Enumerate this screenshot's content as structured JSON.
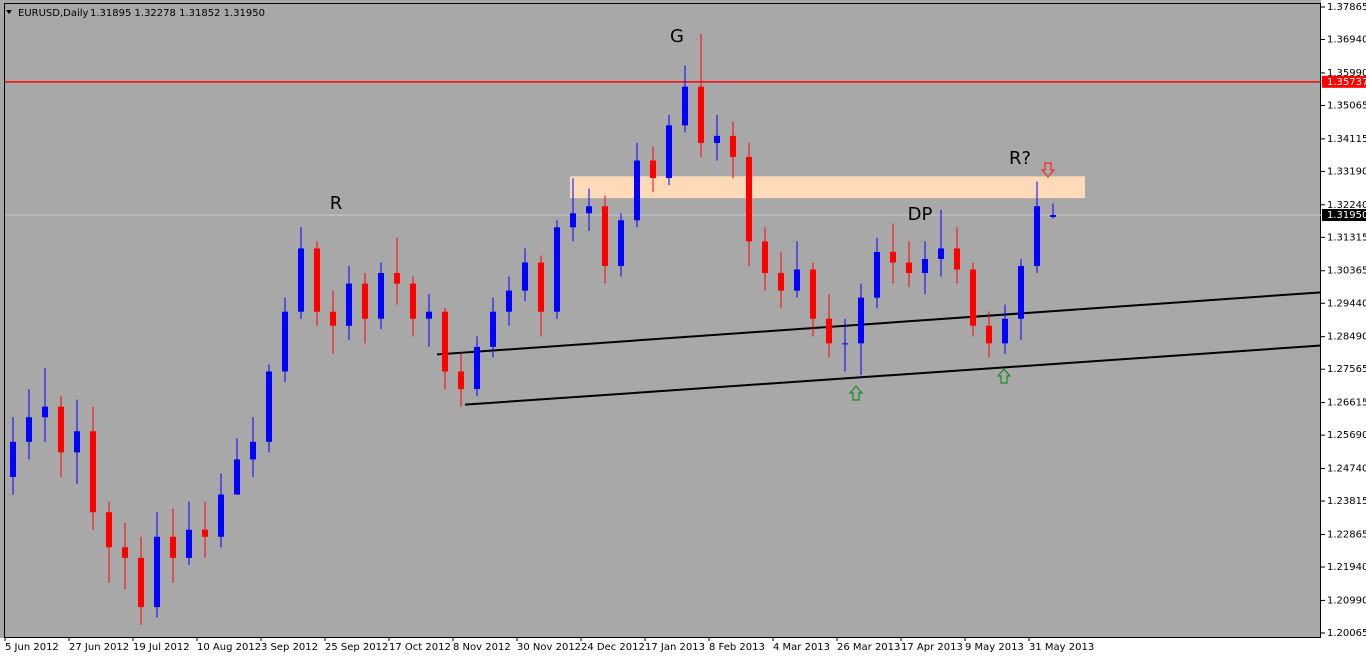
{
  "chart_data": {
    "type": "candlestick",
    "title": "EURUSD,Daily",
    "header_prices": "1.31895 1.32278 1.31852 1.31950",
    "categories": [
      "5 Jun 2012",
      null,
      null,
      null,
      "27 Jun 2012",
      null,
      null,
      null,
      "19 Jul 2012",
      null,
      null,
      null,
      "10 Aug 2012",
      null,
      null,
      null,
      "3 Sep 2012",
      null,
      null,
      null,
      "25 Sep 2012",
      null,
      null,
      null,
      "17 Oct 2012",
      null,
      null,
      null,
      "8 Nov 2012",
      null,
      null,
      null,
      "30 Nov 2012",
      null,
      null,
      null,
      "24 Dec 2012",
      null,
      null,
      null,
      "17 Jan 2013",
      null,
      null,
      null,
      "8 Feb 2013",
      null,
      null,
      null,
      "4 Mar 2013",
      null,
      null,
      null,
      "26 Mar 2013",
      null,
      null,
      null,
      "17 Apr 2013",
      null,
      null,
      null,
      "9 May 2013",
      null,
      null,
      null,
      "31 May 2013",
      null
    ],
    "open": [
      1.245,
      1.255,
      1.262,
      1.265,
      1.252,
      1.258,
      1.235,
      1.225,
      1.222,
      1.208,
      1.228,
      1.222,
      1.23,
      1.228,
      1.24,
      1.25,
      1.255,
      1.275,
      1.292,
      1.31,
      1.292,
      1.288,
      1.3,
      1.29,
      1.303,
      1.3,
      1.29,
      1.292,
      1.275,
      1.27,
      1.282,
      1.292,
      1.298,
      1.306,
      1.292,
      1.316,
      1.32,
      1.322,
      1.305,
      1.318,
      1.335,
      1.33,
      1.345,
      1.356,
      1.34,
      1.342,
      1.336,
      1.312,
      1.303,
      1.298,
      1.304,
      1.29,
      1.283,
      1.283,
      1.296,
      1.309,
      1.306,
      1.303,
      1.307,
      1.31,
      1.304,
      1.288,
      1.283,
      1.29,
      1.305,
      1.31895
    ],
    "high": [
      1.262,
      1.27,
      1.276,
      1.268,
      1.267,
      1.265,
      1.238,
      1.232,
      1.228,
      1.235,
      1.236,
      1.238,
      1.238,
      1.246,
      1.256,
      1.262,
      1.277,
      1.296,
      1.316,
      1.312,
      1.298,
      1.305,
      1.303,
      1.306,
      1.313,
      1.302,
      1.297,
      1.293,
      1.28,
      1.285,
      1.296,
      1.302,
      1.31,
      1.308,
      1.318,
      1.33,
      1.327,
      1.325,
      1.32,
      1.34,
      1.339,
      1.348,
      1.362,
      1.371,
      1.348,
      1.346,
      1.34,
      1.316,
      1.309,
      1.312,
      1.306,
      1.297,
      1.29,
      1.3,
      1.313,
      1.317,
      1.312,
      1.312,
      1.321,
      1.316,
      1.306,
      1.292,
      1.294,
      1.307,
      1.329,
      1.32278
    ],
    "low": [
      1.24,
      1.25,
      1.255,
      1.245,
      1.243,
      1.23,
      1.215,
      1.213,
      1.203,
      1.205,
      1.215,
      1.22,
      1.222,
      1.225,
      1.24,
      1.245,
      1.252,
      1.272,
      1.29,
      1.288,
      1.28,
      1.284,
      1.283,
      1.287,
      1.294,
      1.285,
      1.282,
      1.27,
      1.265,
      1.268,
      1.279,
      1.288,
      1.295,
      1.285,
      1.29,
      1.312,
      1.315,
      1.3,
      1.302,
      1.316,
      1.326,
      1.328,
      1.343,
      1.336,
      1.335,
      1.33,
      1.305,
      1.298,
      1.293,
      1.296,
      1.285,
      1.279,
      1.275,
      1.274,
      1.293,
      1.3,
      1.299,
      1.297,
      1.302,
      1.3,
      1.285,
      1.279,
      1.28,
      1.284,
      1.303,
      1.31852
    ],
    "close": [
      1.255,
      1.262,
      1.265,
      1.252,
      1.258,
      1.235,
      1.225,
      1.222,
      1.208,
      1.228,
      1.222,
      1.23,
      1.228,
      1.24,
      1.25,
      1.255,
      1.275,
      1.292,
      1.31,
      1.292,
      1.288,
      1.3,
      1.29,
      1.303,
      1.3,
      1.29,
      1.292,
      1.275,
      1.27,
      1.282,
      1.292,
      1.298,
      1.306,
      1.292,
      1.316,
      1.32,
      1.322,
      1.305,
      1.318,
      1.335,
      1.33,
      1.345,
      1.356,
      1.34,
      1.342,
      1.336,
      1.312,
      1.303,
      1.298,
      1.304,
      1.29,
      1.283,
      1.283,
      1.296,
      1.309,
      1.306,
      1.303,
      1.307,
      1.31,
      1.304,
      1.288,
      1.283,
      1.29,
      1.305,
      1.322,
      1.3195
    ],
    "up_color": "#0000ff",
    "down_color": "#ff0000",
    "ylim": [
      1.1995,
      1.3795
    ],
    "yticks": [
      1.37865,
      {
        "value": 1.3694,
        "label": "1.36940"
      },
      {
        "value": 1.3599,
        "label": "1.35990"
      },
      1.35065,
      1.34115,
      {
        "value": 1.3319,
        "label": "1.33190"
      },
      {
        "value": 1.3224,
        "label": "1.32240"
      },
      1.31315,
      1.30365,
      {
        "value": 1.2944,
        "label": "1.29440"
      },
      {
        "value": 1.2849,
        "label": "1.28490"
      },
      1.27565,
      1.26615,
      {
        "value": 1.2569,
        "label": "1.25690"
      },
      {
        "value": 1.2474,
        "label": "1.24740"
      },
      1.23815,
      1.22865,
      {
        "value": 1.2194,
        "label": "1.21940"
      },
      {
        "value": 1.2099,
        "label": "1.20990"
      },
      1.20065
    ],
    "resistance": {
      "value": 1.35737,
      "label": "1.35737",
      "color": "#ff0000"
    },
    "current_price": {
      "value": 1.3195,
      "label": "1.31950"
    },
    "zone": [
      1.3243,
      1.3305
    ],
    "zone_color": "#ffdab9",
    "trendlines": [
      [
        1.27985,
        1.29751
      ],
      [
        1.26558,
        1.28238
      ]
    ],
    "annotations": [
      "G",
      "R",
      "DP",
      "R?"
    ]
  }
}
